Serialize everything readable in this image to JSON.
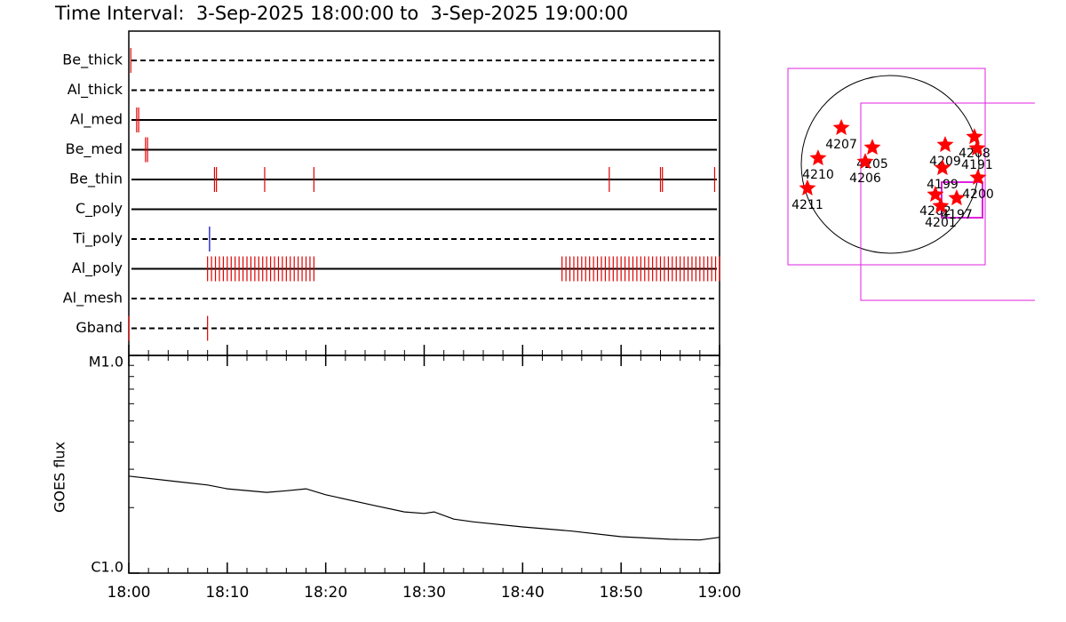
{
  "chart_data": [
    {
      "type": "timeline",
      "title": "Time Interval:  3-Sep-2025 18:00:00 to  3-Sep-2025 19:00:00",
      "xlim": [
        0,
        60
      ],
      "rows": [
        {
          "name": "Be_thick",
          "style": "dashed",
          "color": "#e00000",
          "times": [
            0.2
          ]
        },
        {
          "name": "Al_thick",
          "style": "dashed",
          "color": "#e00000",
          "times": []
        },
        {
          "name": "Al_med",
          "style": "solid",
          "color": "#e00000",
          "times": [
            0.8,
            1.0
          ]
        },
        {
          "name": "Be_med",
          "style": "solid",
          "color": "#e00000",
          "times": [
            1.7,
            1.9
          ]
        },
        {
          "name": "Be_thin",
          "style": "solid",
          "color": "#e00000",
          "times": [
            8.7,
            8.9,
            13.8,
            18.8,
            48.8,
            54.0,
            54.2,
            59.5
          ]
        },
        {
          "name": "C_poly",
          "style": "solid",
          "color": "#e00000",
          "times": []
        },
        {
          "name": "Ti_poly",
          "style": "dashed",
          "color": "#0000c0",
          "times": [
            8.2
          ]
        },
        {
          "name": "Al_poly",
          "style": "solid",
          "color": "#e00000",
          "times": [
            8.0,
            8.4,
            8.8,
            9.2,
            9.6,
            10.0,
            10.4,
            10.8,
            11.2,
            11.6,
            12.0,
            12.4,
            12.8,
            13.2,
            13.6,
            14.0,
            14.4,
            14.8,
            15.2,
            15.6,
            16.0,
            16.4,
            16.8,
            17.2,
            17.6,
            18.0,
            18.4,
            18.8,
            44.0,
            44.4,
            44.8,
            45.2,
            45.6,
            46.0,
            46.4,
            46.8,
            47.2,
            47.6,
            48.0,
            48.4,
            48.8,
            49.2,
            49.6,
            50.0,
            50.4,
            50.8,
            51.2,
            51.6,
            52.0,
            52.4,
            52.8,
            53.2,
            53.6,
            54.0,
            54.4,
            54.8,
            55.2,
            55.6,
            56.0,
            56.4,
            56.8,
            57.2,
            57.6,
            58.0,
            58.4,
            58.8,
            59.2,
            59.6,
            60.0
          ]
        },
        {
          "name": "Al_mesh",
          "style": "dashed",
          "color": "#e00000",
          "times": []
        },
        {
          "name": "Gband",
          "style": "dashed",
          "color": "#e00000",
          "times": [
            0.0,
            8.0
          ]
        }
      ]
    },
    {
      "type": "line",
      "ylabel": "GOES flux",
      "log": true,
      "color": "#000000",
      "x": [
        0,
        5,
        8,
        10,
        14,
        16,
        18,
        20,
        25,
        28,
        30,
        31,
        33,
        35,
        40,
        45,
        50,
        55,
        58,
        60
      ],
      "values": [
        2.79e-06,
        2.63e-06,
        2.54e-06,
        2.44e-06,
        2.35e-06,
        2.39e-06,
        2.44e-06,
        2.29e-06,
        2.04e-06,
        1.91e-06,
        1.88e-06,
        1.91e-06,
        1.77e-06,
        1.72e-06,
        1.63e-06,
        1.56e-06,
        1.47e-06,
        1.43e-06,
        1.42e-06,
        1.46e-06
      ],
      "xlim": [
        0,
        60
      ],
      "xticks": [
        {
          "value": 0,
          "label": "18:00"
        },
        {
          "value": 10,
          "label": "18:10"
        },
        {
          "value": 20,
          "label": "18:20"
        },
        {
          "value": 30,
          "label": "18:30"
        },
        {
          "value": 40,
          "label": "18:40"
        },
        {
          "value": 50,
          "label": "18:50"
        },
        {
          "value": 60,
          "label": "19:00"
        }
      ],
      "ylim": [
        1e-06,
        1e-05
      ],
      "yticks": [
        {
          "value": 1e-06,
          "label": "C1.0"
        },
        {
          "value": 1e-05,
          "label": "M1.0"
        }
      ]
    },
    {
      "type": "scatter",
      "color": "#ff0000",
      "regions": [
        {
          "label": "4207",
          "x": -522,
          "y": 390
        },
        {
          "label": "4210",
          "x": -770,
          "y": 66
        },
        {
          "label": "4211",
          "x": -884,
          "y": -256
        },
        {
          "label": "4205",
          "x": -190,
          "y": 180
        },
        {
          "label": "4206",
          "x": -266,
          "y": 28
        },
        {
          "label": "4209",
          "x": 589,
          "y": 209
        },
        {
          "label": "4199",
          "x": 560,
          "y": -38
        },
        {
          "label": "4208",
          "x": 902,
          "y": 294
        },
        {
          "label": "4191",
          "x": 931,
          "y": 171
        },
        {
          "label": "4200",
          "x": 940,
          "y": -142
        },
        {
          "label": "4202",
          "x": 484,
          "y": -323
        },
        {
          "label": "4197",
          "x": 712,
          "y": -361
        },
        {
          "label": "4201",
          "x": 541,
          "y": -446
        }
      ]
    }
  ]
}
